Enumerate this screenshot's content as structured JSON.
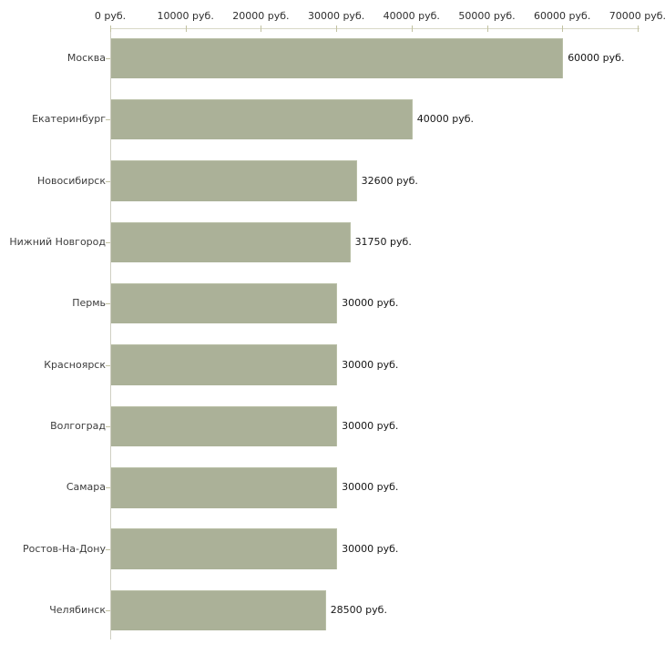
{
  "chart_data": {
    "type": "bar",
    "orientation": "horizontal",
    "title": "",
    "unit": "руб.",
    "categories": [
      "Москва",
      "Екатеринбург",
      "Новосибирск",
      "Нижний Новгород",
      "Пермь",
      "Красноярск",
      "Волгоград",
      "Самара",
      "Ростов-На-Дону",
      "Челябинск"
    ],
    "values": [
      60000,
      40000,
      32600,
      31750,
      30000,
      30000,
      30000,
      30000,
      30000,
      28500
    ],
    "value_labels": [
      "60000 руб.",
      "40000 руб.",
      "32600 руб.",
      "31750 руб.",
      "30000 руб.",
      "30000 руб.",
      "30000 руб.",
      "30000 руб.",
      "30000 руб.",
      "28500 руб."
    ],
    "x_axis": {
      "position": "top",
      "range": [
        0,
        70000
      ],
      "ticks": [
        0,
        10000,
        20000,
        30000,
        40000,
        50000,
        60000,
        70000
      ],
      "tick_labels": [
        "0 руб.",
        "10000 руб.",
        "20000 руб.",
        "30000 руб.",
        "40000 руб.",
        "50000 руб.",
        "60000 руб.",
        "70000 руб."
      ]
    },
    "legend": "none",
    "grid": "off",
    "colors": {
      "background": "#ffffff",
      "bar": "#abb198",
      "bar_border": "#b9bfa6",
      "axis_line": "#d8d8c6",
      "axis_line_vertical": "#cfcfc2",
      "tick": "#c2c2a2",
      "category_text": "#3c3c3c",
      "value_text": "#161616",
      "axis_text": "#2e2e2e"
    }
  }
}
